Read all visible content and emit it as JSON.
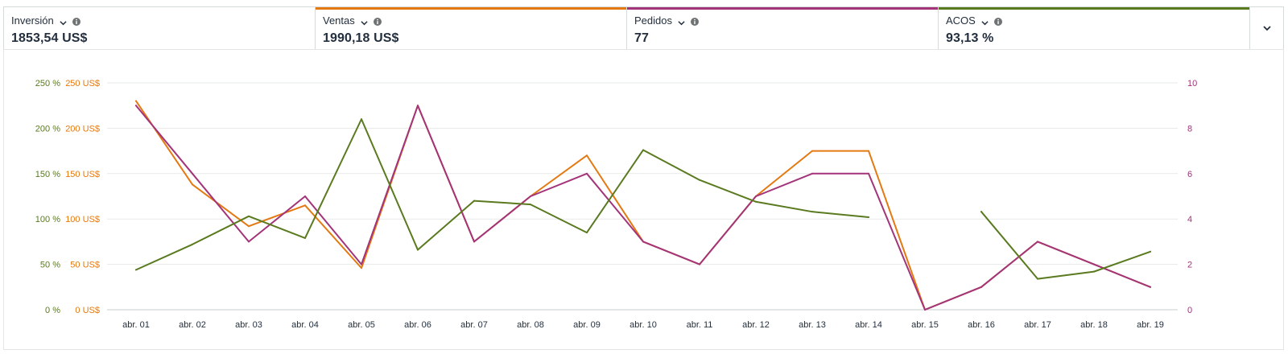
{
  "metrics": [
    {
      "label": "Inversión",
      "value": "1853,54 US$",
      "color": ""
    },
    {
      "label": "Ventas",
      "value": "1990,18 US$",
      "color": "#e47911"
    },
    {
      "label": "Pedidos",
      "value": "77",
      "color": "#a3347a"
    },
    {
      "label": "ACOS",
      "value": "93,13 %",
      "color": "#5a7a1f"
    }
  ],
  "chart_data": {
    "type": "line",
    "categories": [
      "abr. 01",
      "abr. 02",
      "abr. 03",
      "abr. 04",
      "abr. 05",
      "abr. 06",
      "abr. 07",
      "abr. 08",
      "abr. 09",
      "abr. 10",
      "abr. 11",
      "abr. 12",
      "abr. 13",
      "abr. 14",
      "abr. 15",
      "abr. 16",
      "abr. 17",
      "abr. 18",
      "abr. 19"
    ],
    "series": [
      {
        "name": "Ventas",
        "axis": "left_usd",
        "color": "#e47911",
        "values": [
          230,
          138,
          92,
          115,
          46,
          225,
          75,
          125,
          170,
          75,
          50,
          125,
          175,
          175,
          0,
          25,
          75,
          50,
          25
        ]
      },
      {
        "name": "Pedidos",
        "axis": "right",
        "color": "#a3347a",
        "values": [
          9,
          6,
          3,
          5,
          2,
          9,
          3,
          5,
          6,
          3,
          2,
          5,
          6,
          6,
          0,
          1,
          3,
          2,
          1
        ]
      },
      {
        "name": "ACOS",
        "axis": "left_pct",
        "color": "#5a7a1f",
        "values": [
          44,
          72,
          103,
          79,
          210,
          66,
          120,
          116,
          85,
          176,
          143,
          119,
          108,
          102,
          null,
          108,
          34,
          42,
          64
        ]
      }
    ],
    "left_pct_ticks": [
      "0 %",
      "50 %",
      "100 %",
      "150 %",
      "200 %",
      "250 %"
    ],
    "left_usd_ticks": [
      "0 US$",
      "50 US$",
      "100 US$",
      "150 US$",
      "200 US$",
      "250 US$"
    ],
    "right_ticks": [
      "0",
      "2",
      "4",
      "6",
      "8",
      "10"
    ],
    "left_ylim": [
      0,
      250
    ],
    "right_ylim": [
      0,
      10
    ],
    "grid": true
  }
}
